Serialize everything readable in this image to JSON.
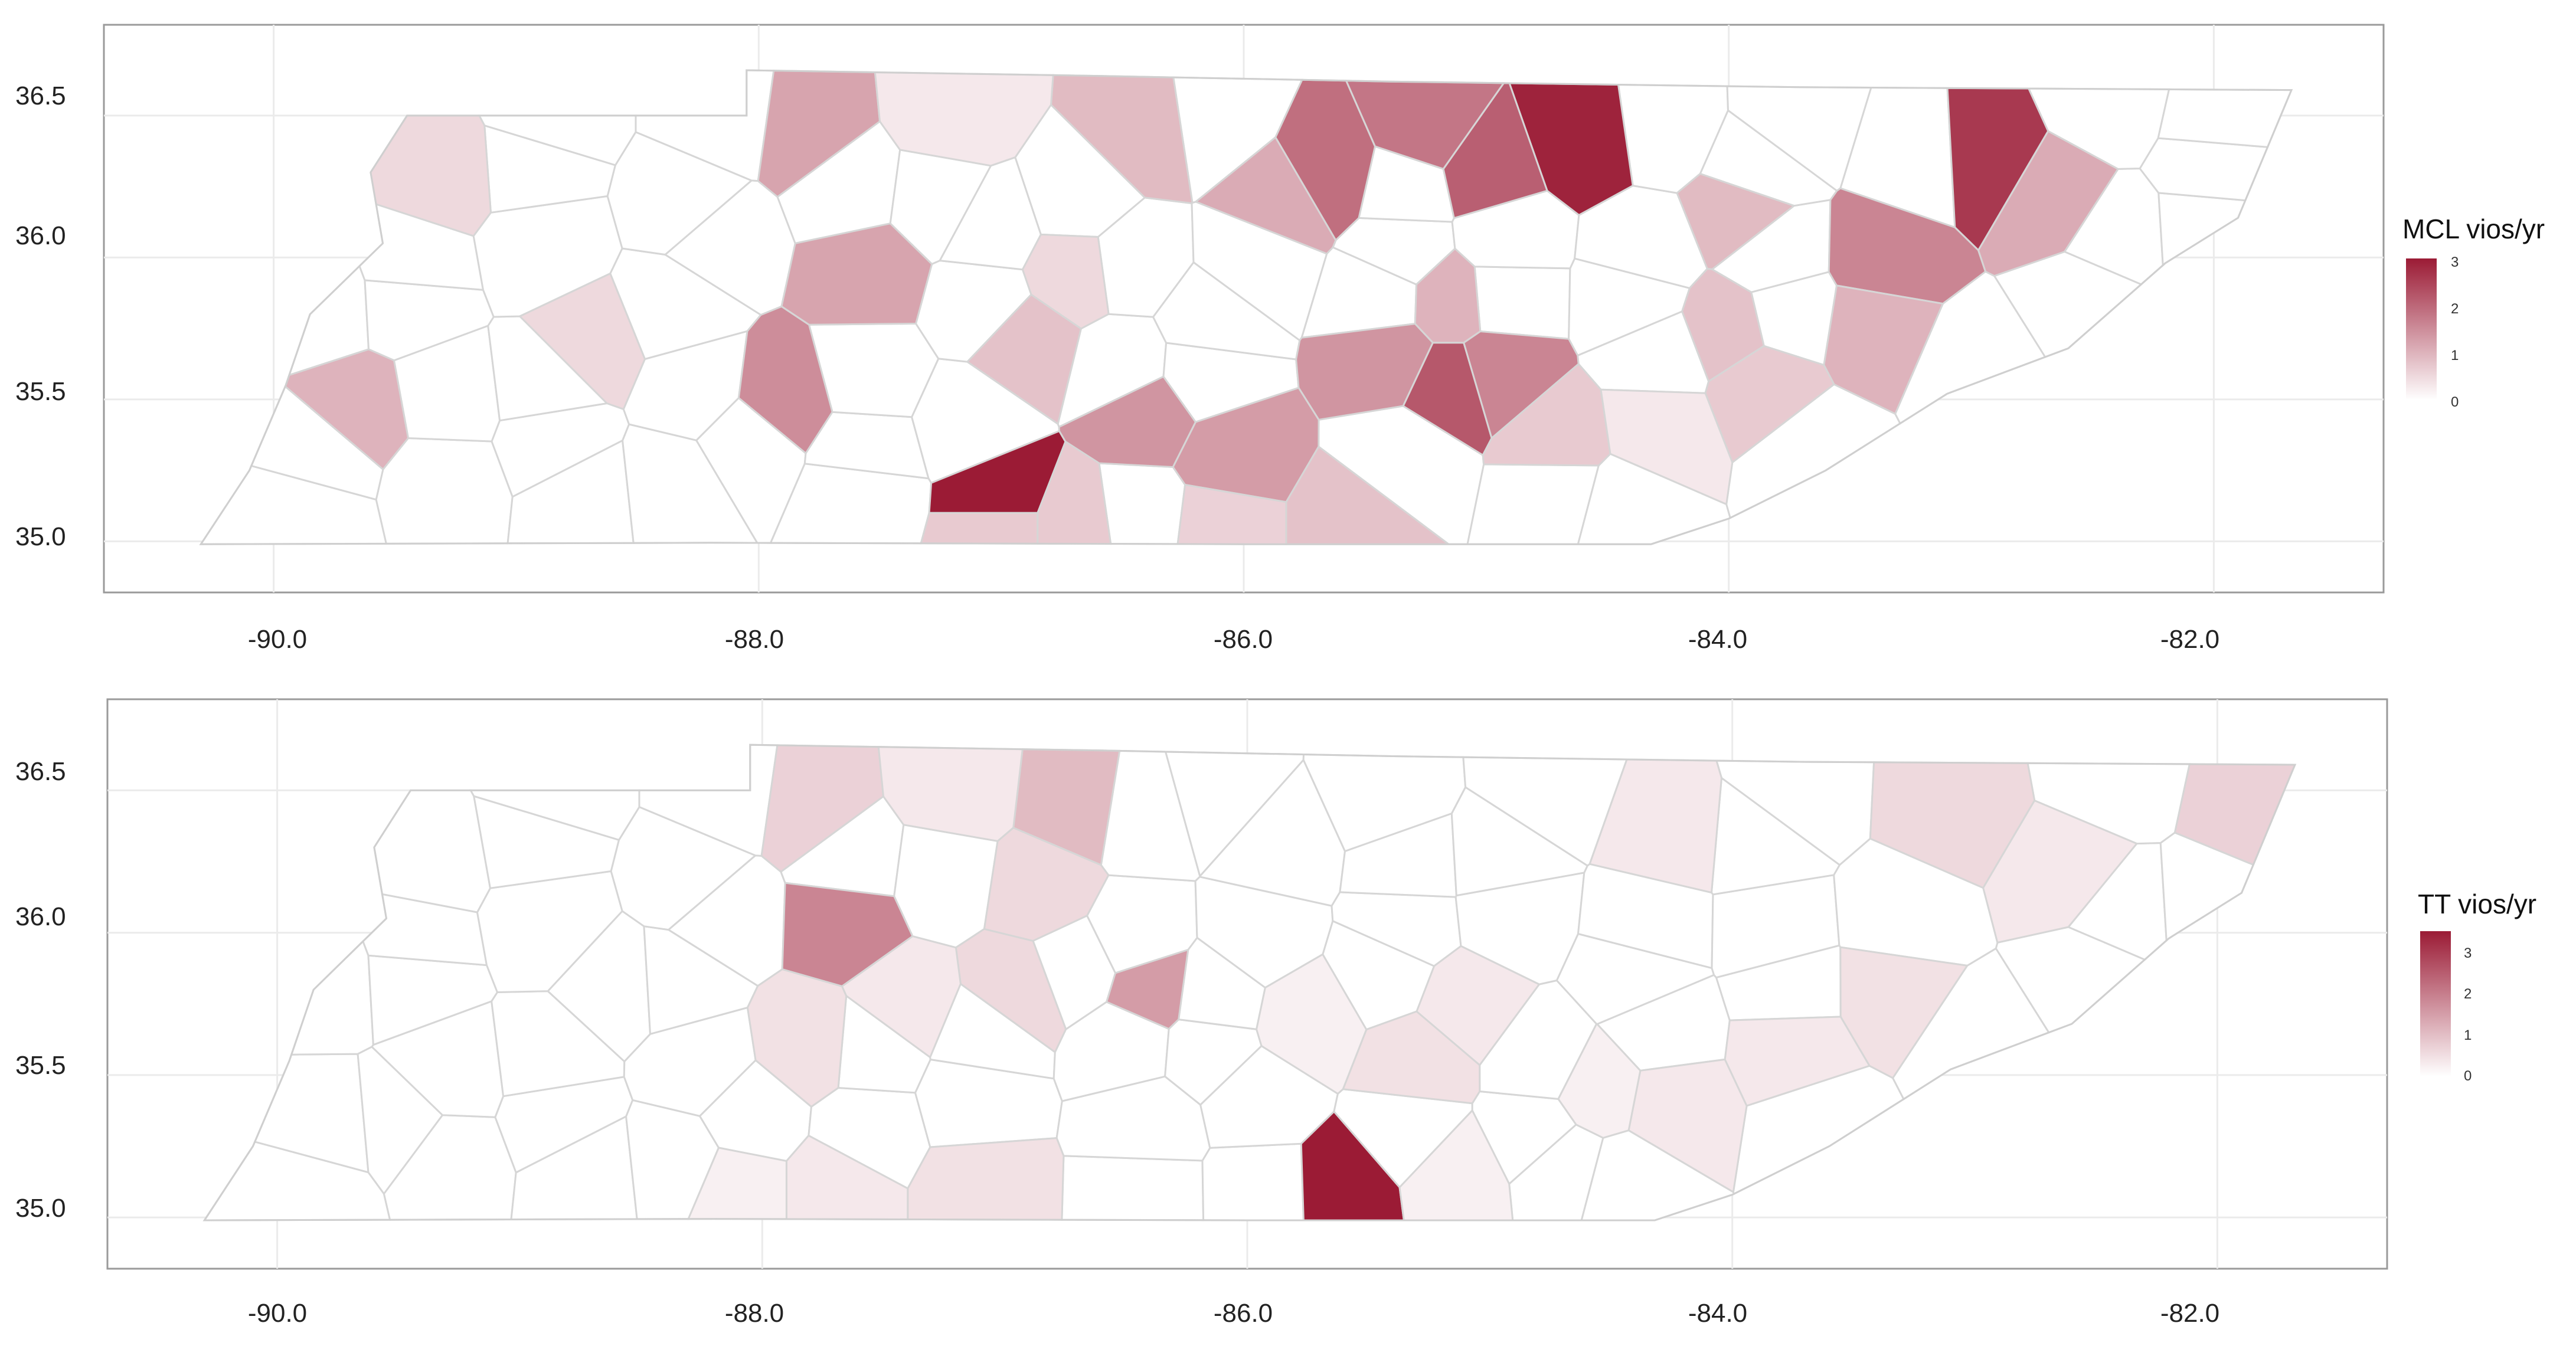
{
  "chart_data": [
    {
      "type": "choropleth",
      "region": "Tennessee counties",
      "x_ticks": [
        "-90.0",
        "-88.0",
        "-86.0",
        "-84.0",
        "-82.0"
      ],
      "y_ticks": [
        "36.5",
        "36.0",
        "35.5",
        "35.0"
      ],
      "xlim": [
        -90.7,
        -81.3
      ],
      "ylim": [
        34.82,
        36.82
      ],
      "legend": {
        "title": "MCL vios/yr",
        "ticks": [
          "3",
          "2",
          "1",
          "0"
        ],
        "min": 0,
        "max": 3,
        "color_low": "#ffffff",
        "color_high": "#9b1b35",
        "position": "right"
      },
      "highlighted": [
        {
          "lon": -87.0,
          "lat": 35.15,
          "value": 3.0
        },
        {
          "lon": -84.6,
          "lat": 36.42,
          "value": 2.9
        },
        {
          "lon": -82.95,
          "lat": 36.35,
          "value": 2.6
        },
        {
          "lon": -85.15,
          "lat": 35.55,
          "value": 2.2
        },
        {
          "lon": -85.0,
          "lat": 36.3,
          "value": 2.1
        },
        {
          "lon": -85.65,
          "lat": 36.3,
          "value": 1.9
        },
        {
          "lon": -85.25,
          "lat": 36.45,
          "value": 1.8
        },
        {
          "lon": -83.35,
          "lat": 36.0,
          "value": 1.6
        },
        {
          "lon": -84.95,
          "lat": 35.6,
          "value": 1.6
        },
        {
          "lon": -87.9,
          "lat": 35.5,
          "value": 1.5
        },
        {
          "lon": -86.4,
          "lat": 35.45,
          "value": 1.4
        },
        {
          "lon": -85.4,
          "lat": 35.65,
          "value": 1.4
        },
        {
          "lon": -86.05,
          "lat": 35.3,
          "value": 1.3
        },
        {
          "lon": -87.8,
          "lat": 36.45,
          "value": 1.2
        },
        {
          "lon": -87.55,
          "lat": 35.95,
          "value": 1.2
        },
        {
          "lon": -82.65,
          "lat": 36.2,
          "value": 1.1
        },
        {
          "lon": -85.85,
          "lat": 36.2,
          "value": 1.1
        },
        {
          "lon": -85.15,
          "lat": 35.85,
          "value": 1.0
        },
        {
          "lon": -83.4,
          "lat": 35.75,
          "value": 1.0
        },
        {
          "lon": -89.65,
          "lat": 35.45,
          "value": 1.0
        },
        {
          "lon": -86.4,
          "lat": 36.45,
          "value": 0.9
        },
        {
          "lon": -83.95,
          "lat": 36.15,
          "value": 0.9
        },
        {
          "lon": -84.0,
          "lat": 35.75,
          "value": 0.8
        },
        {
          "lon": -86.9,
          "lat": 35.7,
          "value": 0.8
        },
        {
          "lon": -85.55,
          "lat": 35.05,
          "value": 0.8
        },
        {
          "lon": -84.7,
          "lat": 35.35,
          "value": 0.7
        },
        {
          "lon": -83.85,
          "lat": 35.55,
          "value": 0.7
        },
        {
          "lon": -87.0,
          "lat": 35.05,
          "value": 0.7
        },
        {
          "lon": -86.7,
          "lat": 35.05,
          "value": 0.7
        },
        {
          "lon": -86.1,
          "lat": 35.05,
          "value": 0.6
        },
        {
          "lon": -89.3,
          "lat": 36.3,
          "value": 0.5
        },
        {
          "lon": -88.7,
          "lat": 35.7,
          "value": 0.5
        },
        {
          "lon": -86.7,
          "lat": 35.95,
          "value": 0.5
        },
        {
          "lon": -87.2,
          "lat": 36.5,
          "value": 0.3
        },
        {
          "lon": -84.3,
          "lat": 35.4,
          "value": 0.3
        }
      ]
    },
    {
      "type": "choropleth",
      "region": "Tennessee counties",
      "x_ticks": [
        "-90.0",
        "-88.0",
        "-86.0",
        "-84.0",
        "-82.0"
      ],
      "y_ticks": [
        "36.5",
        "36.0",
        "35.5",
        "35.0"
      ],
      "xlim": [
        -90.7,
        -81.3
      ],
      "ylim": [
        34.82,
        36.82
      ],
      "legend": {
        "title": "TT vios/yr",
        "ticks": [
          "3",
          "2",
          "1",
          "0"
        ],
        "min": 0,
        "max": 3,
        "color_low": "#ffffff",
        "color_high": "#9b1b35",
        "position": "right"
      },
      "highlighted": [
        {
          "lon": -85.6,
          "lat": 35.1,
          "value": 3.0
        },
        {
          "lon": -87.65,
          "lat": 36.05,
          "value": 1.6
        },
        {
          "lon": -86.4,
          "lat": 35.8,
          "value": 1.3
        },
        {
          "lon": -86.7,
          "lat": 36.45,
          "value": 0.9
        },
        {
          "lon": -87.8,
          "lat": 36.45,
          "value": 0.6
        },
        {
          "lon": -81.85,
          "lat": 36.45,
          "value": 0.6
        },
        {
          "lon": -86.95,
          "lat": 35.8,
          "value": 0.5
        },
        {
          "lon": -86.85,
          "lat": 36.15,
          "value": 0.5
        },
        {
          "lon": -83.1,
          "lat": 36.45,
          "value": 0.5
        },
        {
          "lon": -85.3,
          "lat": 35.55,
          "value": 0.4
        },
        {
          "lon": -87.1,
          "lat": 35.1,
          "value": 0.4
        },
        {
          "lon": -87.8,
          "lat": 35.6,
          "value": 0.4
        },
        {
          "lon": -83.35,
          "lat": 35.8,
          "value": 0.4
        },
        {
          "lon": -84.25,
          "lat": 36.35,
          "value": 0.3
        },
        {
          "lon": -85.1,
          "lat": 35.75,
          "value": 0.3
        },
        {
          "lon": -84.25,
          "lat": 35.4,
          "value": 0.3
        },
        {
          "lon": -82.6,
          "lat": 36.2,
          "value": 0.3
        },
        {
          "lon": -87.2,
          "lat": 36.5,
          "value": 0.3
        },
        {
          "lon": -87.4,
          "lat": 35.75,
          "value": 0.3
        },
        {
          "lon": -83.75,
          "lat": 35.6,
          "value": 0.3
        },
        {
          "lon": -87.7,
          "lat": 35.1,
          "value": 0.3
        },
        {
          "lon": -88.1,
          "lat": 35.1,
          "value": 0.2
        },
        {
          "lon": -85.15,
          "lat": 35.15,
          "value": 0.2
        },
        {
          "lon": -84.55,
          "lat": 35.45,
          "value": 0.2
        },
        {
          "lon": -85.75,
          "lat": 35.7,
          "value": 0.2
        }
      ]
    }
  ]
}
